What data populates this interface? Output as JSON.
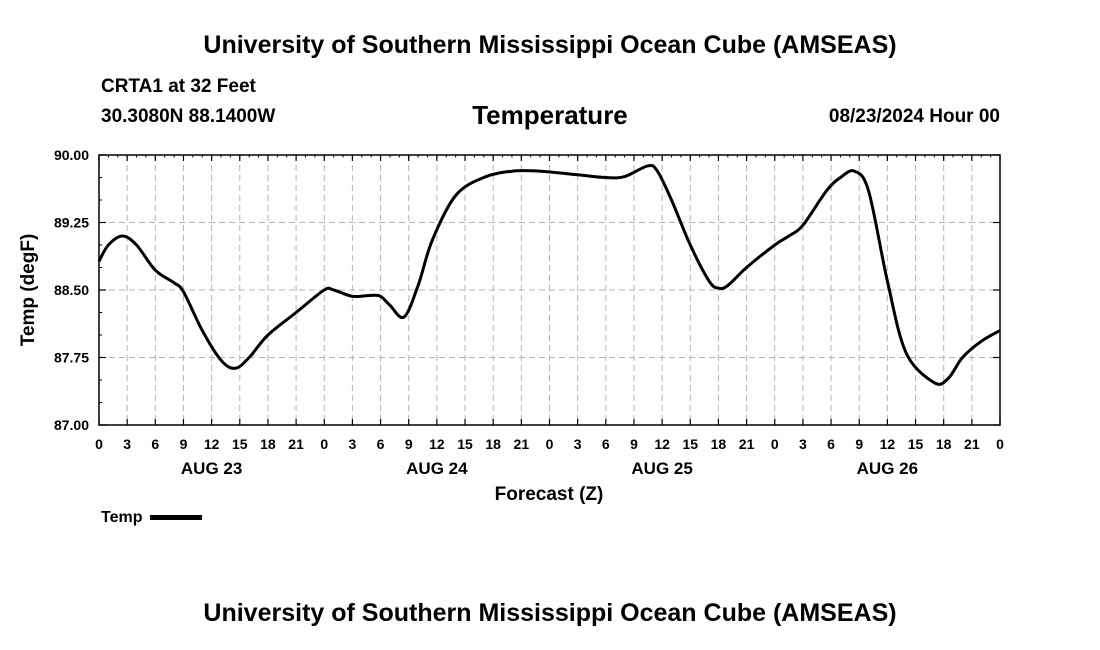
{
  "header": {
    "title": "University of Southern Mississippi Ocean Cube (AMSEAS)",
    "station": "CRTA1 at 32 Feet",
    "coords": "30.3080N  88.1400W",
    "variable": "Temperature",
    "datetime": "08/23/2024 Hour 00"
  },
  "footer": {
    "title": "University of Southern Mississippi Ocean Cube (AMSEAS)"
  },
  "legend": {
    "label": "Temp"
  },
  "chart_data": {
    "type": "line",
    "title": "Temperature",
    "xlabel": "Forecast (Z)",
    "ylabel": "Temp (degF)",
    "xlim": [
      0,
      96
    ],
    "ylim": [
      87.0,
      90.0
    ],
    "y_ticks": [
      87.0,
      87.75,
      88.5,
      89.25,
      90.0
    ],
    "y_tick_labels": [
      "87.00",
      "87.75",
      "88.50",
      "89.25",
      "90.00"
    ],
    "x_ticks": [
      0,
      3,
      6,
      9,
      12,
      15,
      18,
      21,
      24,
      27,
      30,
      33,
      36,
      39,
      42,
      45,
      48,
      51,
      54,
      57,
      60,
      63,
      66,
      69,
      72,
      75,
      78,
      81,
      84,
      87,
      90,
      93,
      96
    ],
    "x_tick_labels": [
      "0",
      "3",
      "6",
      "9",
      "12",
      "15",
      "18",
      "21",
      "0",
      "3",
      "6",
      "9",
      "12",
      "15",
      "18",
      "21",
      "0",
      "3",
      "6",
      "9",
      "12",
      "15",
      "18",
      "21",
      "0",
      "3",
      "6",
      "9",
      "12",
      "15",
      "18",
      "21",
      "0"
    ],
    "day_labels": [
      {
        "label": "AUG 23",
        "hour": 12
      },
      {
        "label": "AUG 24",
        "hour": 36
      },
      {
        "label": "AUG 25",
        "hour": 60
      },
      {
        "label": "AUG 26",
        "hour": 84
      }
    ],
    "grid": true,
    "series": [
      {
        "name": "Temp",
        "x": [
          0,
          1,
          2.5,
          4,
          6,
          8,
          9,
          11,
          13,
          14.5,
          16,
          18,
          21,
          24,
          25,
          27,
          29,
          30,
          31,
          32.5,
          34,
          35.5,
          38,
          41,
          44,
          47,
          51,
          54,
          56,
          58.5,
          59.5,
          61,
          63,
          65,
          66,
          67,
          69,
          72,
          73.5,
          75,
          77.5,
          79,
          80.5,
          82,
          84,
          86,
          89,
          90.5,
          92,
          94,
          96
        ],
        "values": [
          88.82,
          89.0,
          89.1,
          89.0,
          88.72,
          88.58,
          88.48,
          88.05,
          87.72,
          87.63,
          87.75,
          88.0,
          88.25,
          88.5,
          88.5,
          88.43,
          88.44,
          88.43,
          88.33,
          88.2,
          88.55,
          89.05,
          89.55,
          89.75,
          89.82,
          89.82,
          89.78,
          89.75,
          89.76,
          89.88,
          89.82,
          89.5,
          89.0,
          88.6,
          88.52,
          88.55,
          88.75,
          89.0,
          89.1,
          89.22,
          89.6,
          89.75,
          89.82,
          89.6,
          88.6,
          87.8,
          87.47,
          87.52,
          87.75,
          87.93,
          88.05
        ]
      }
    ]
  }
}
